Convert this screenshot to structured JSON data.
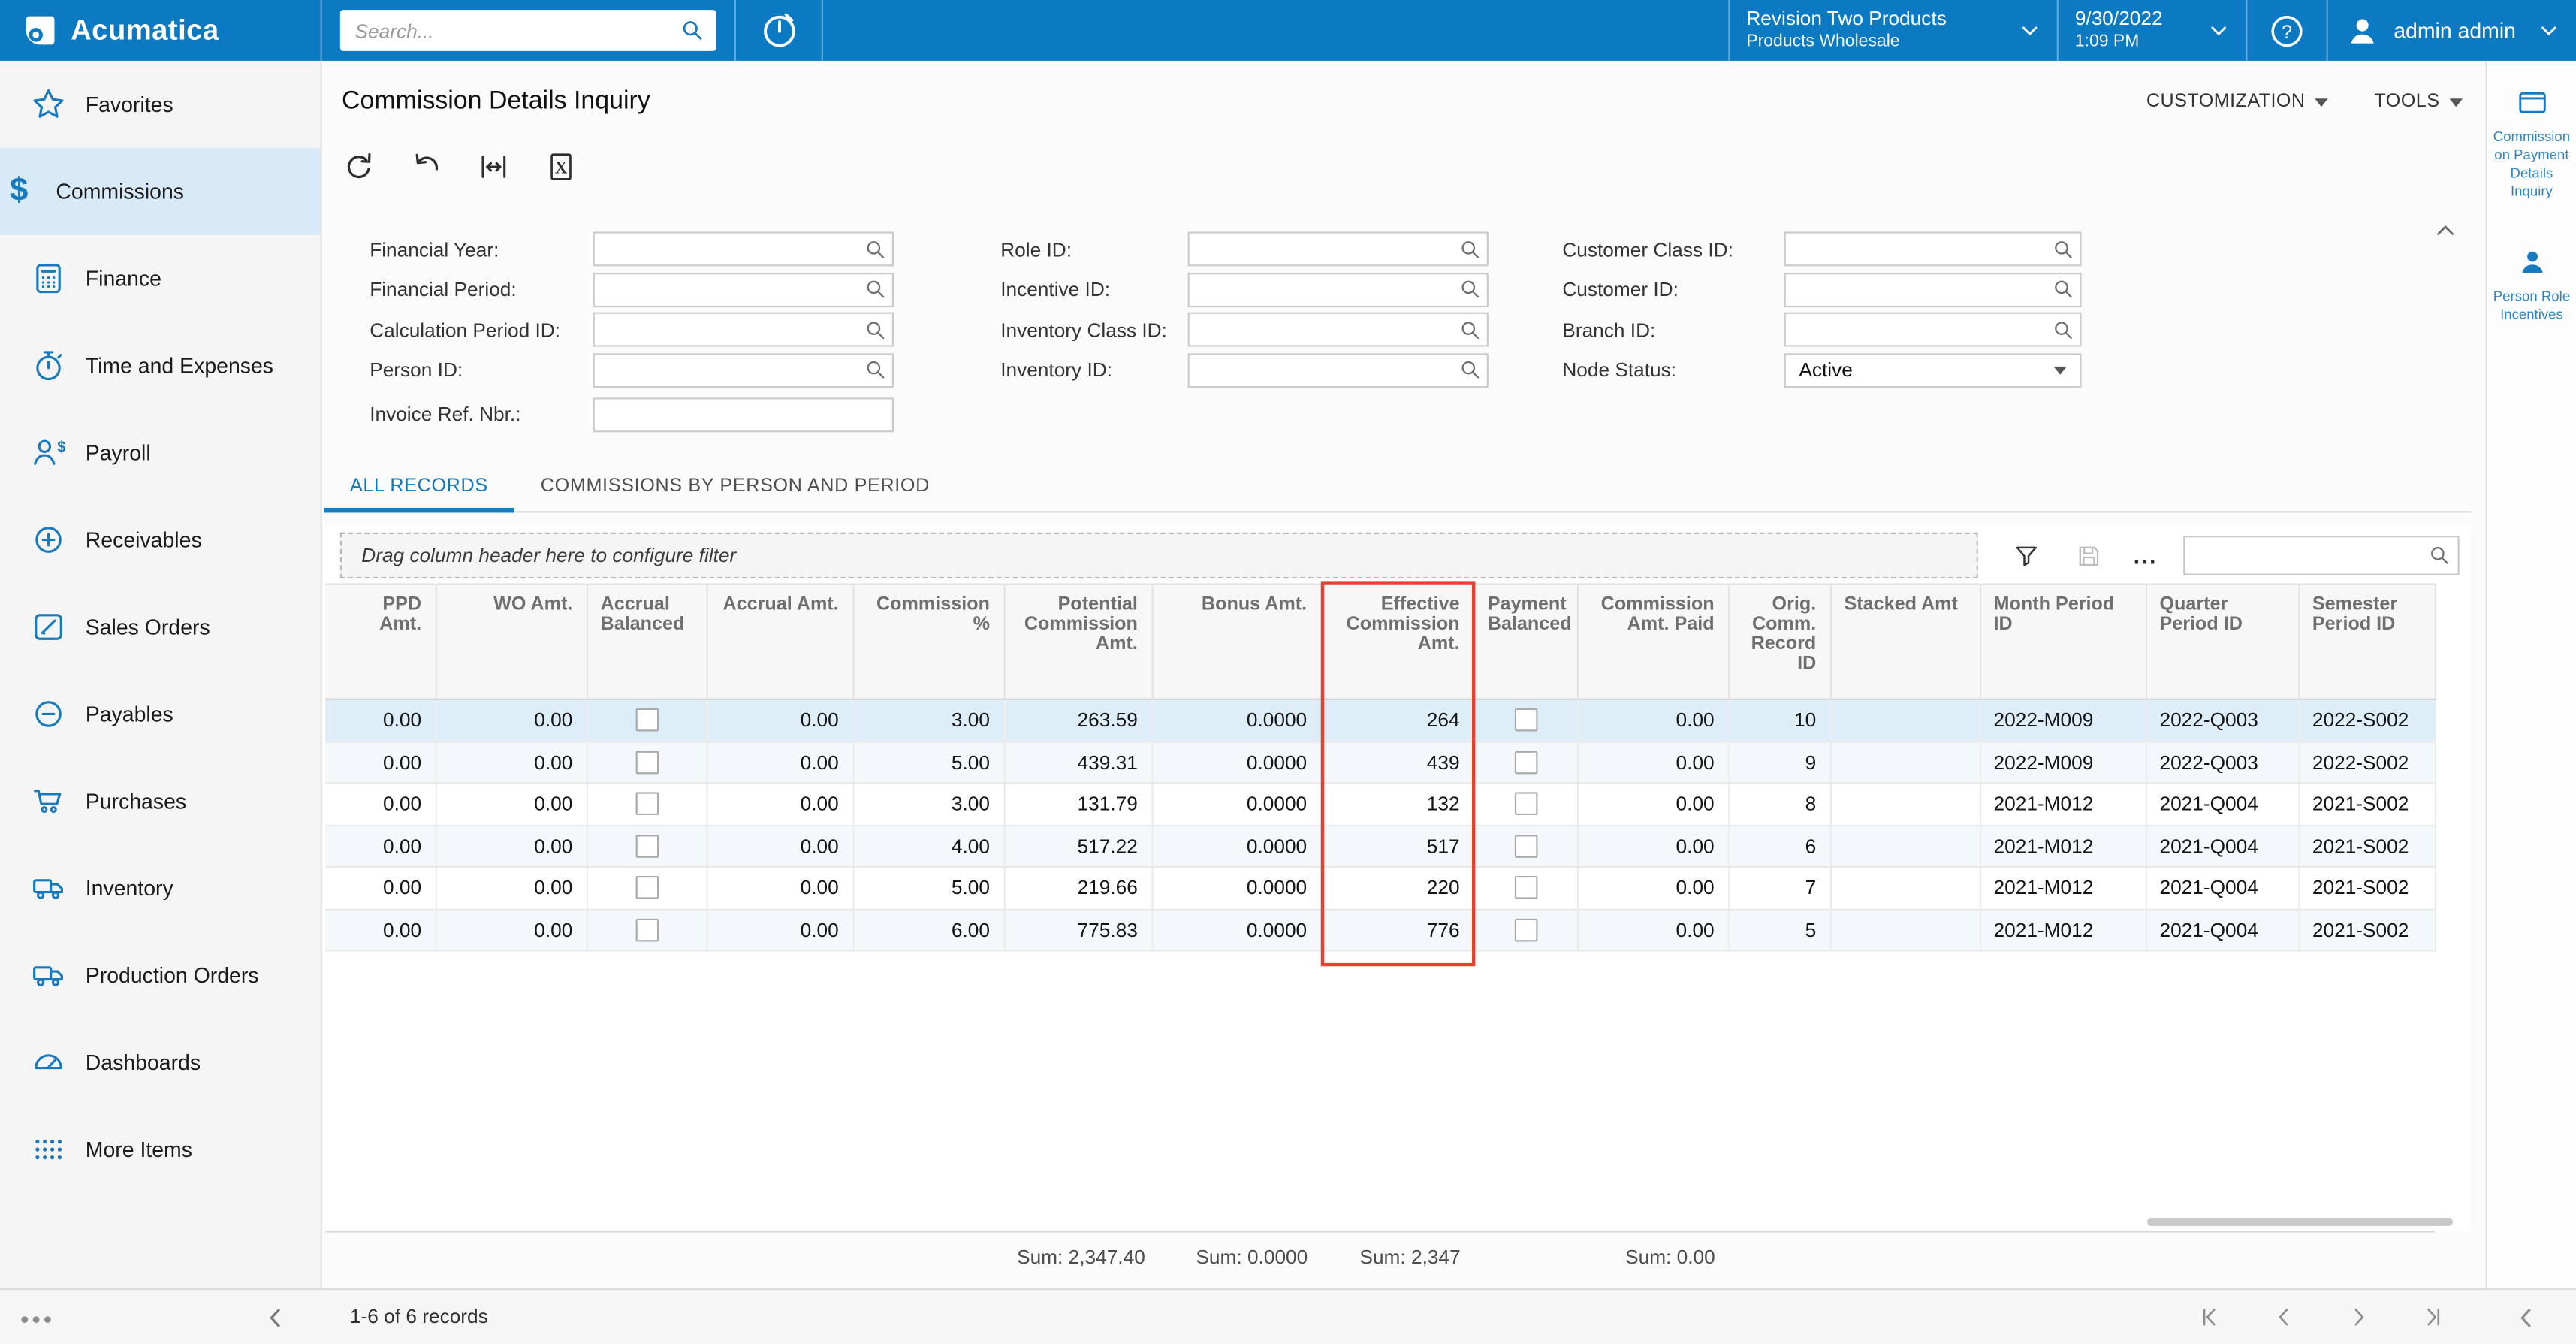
{
  "header": {
    "logo": "Acumatica",
    "search_placeholder": "Search...",
    "company": "Revision Two Products",
    "branch": "Products Wholesale",
    "date": "9/30/2022",
    "time": "1:09 PM",
    "user": "admin admin"
  },
  "sidebar": {
    "items": [
      {
        "label": "Favorites",
        "icon": "star",
        "active": false
      },
      {
        "label": "Commissions",
        "icon": "dollar",
        "active": true
      },
      {
        "label": "Finance",
        "icon": "calculator",
        "active": false
      },
      {
        "label": "Time and Expenses",
        "icon": "stopwatch",
        "active": false
      },
      {
        "label": "Payroll",
        "icon": "person-dollar",
        "active": false
      },
      {
        "label": "Receivables",
        "icon": "plus-circle",
        "active": false
      },
      {
        "label": "Sales Orders",
        "icon": "pencil-square",
        "active": false
      },
      {
        "label": "Payables",
        "icon": "minus-circle",
        "active": false
      },
      {
        "label": "Purchases",
        "icon": "cart",
        "active": false
      },
      {
        "label": "Inventory",
        "icon": "truck",
        "active": false
      },
      {
        "label": "Production Orders",
        "icon": "truck",
        "active": false
      },
      {
        "label": "Dashboards",
        "icon": "gauge",
        "active": false
      },
      {
        "label": "More Items",
        "icon": "grid-dots",
        "active": false
      }
    ]
  },
  "page": {
    "title": "Commission Details Inquiry",
    "customization_label": "CUSTOMIZATION",
    "tools_label": "TOOLS"
  },
  "filters": {
    "col1": [
      {
        "label": "Financial Year:",
        "type": "lookup",
        "value": ""
      },
      {
        "label": "Financial Period:",
        "type": "lookup",
        "value": ""
      },
      {
        "label": "Calculation Period ID:",
        "type": "lookup",
        "value": ""
      },
      {
        "label": "Person ID:",
        "type": "lookup",
        "value": ""
      },
      {
        "label": "Invoice Ref. Nbr.:",
        "type": "text",
        "value": "",
        "gap_before": true
      }
    ],
    "col2": [
      {
        "label": "Role ID:",
        "type": "lookup",
        "value": ""
      },
      {
        "label": "Incentive ID:",
        "type": "lookup",
        "value": ""
      },
      {
        "label": "Inventory Class ID:",
        "type": "lookup",
        "value": ""
      },
      {
        "label": "Inventory ID:",
        "type": "lookup",
        "value": ""
      }
    ],
    "col3": [
      {
        "label": "Customer Class ID:",
        "type": "lookup",
        "value": ""
      },
      {
        "label": "Customer ID:",
        "type": "lookup",
        "value": ""
      },
      {
        "label": "Branch ID:",
        "type": "lookup",
        "value": ""
      },
      {
        "label": "Node Status:",
        "type": "select",
        "value": "Active"
      }
    ]
  },
  "tabs": [
    {
      "label": "ALL RECORDS",
      "active": true
    },
    {
      "label": "COMMISSIONS BY PERSON AND PERIOD",
      "active": false
    }
  ],
  "grid": {
    "drag_hint": "Drag column header here to configure filter",
    "search_value": "",
    "highlight_color": "#e8402f",
    "columns": [
      {
        "label": "PPD Amt.",
        "width": 67,
        "align": "right",
        "type": "text"
      },
      {
        "label": "WO Amt.",
        "width": 92,
        "align": "right",
        "type": "text"
      },
      {
        "label": "Accrual Balanced",
        "width": 73,
        "align": "left",
        "type": "checkbox"
      },
      {
        "label": "Accrual Amt.",
        "width": 89,
        "align": "right",
        "type": "text"
      },
      {
        "label": "Commission %",
        "width": 92,
        "align": "right",
        "type": "text"
      },
      {
        "label": "Potential Commission Amt.",
        "width": 90,
        "align": "right",
        "type": "text"
      },
      {
        "label": "Bonus Amt.",
        "width": 103,
        "align": "right",
        "type": "text"
      },
      {
        "label": "Effective Commission Amt.",
        "width": 93,
        "align": "right",
        "type": "text",
        "highlighted": true
      },
      {
        "label": "Payment Balanced",
        "width": 63,
        "align": "left",
        "type": "checkbox"
      },
      {
        "label": "Commission Amt. Paid",
        "width": 92,
        "align": "right",
        "type": "text"
      },
      {
        "label": "Orig. Comm. Record ID",
        "width": 62,
        "align": "right",
        "type": "text"
      },
      {
        "label": "Stacked Amt",
        "width": 91,
        "align": "left",
        "type": "text"
      },
      {
        "label": "Month Period ID",
        "width": 101,
        "align": "left",
        "type": "text"
      },
      {
        "label": "Quarter Period ID",
        "width": 93,
        "align": "left",
        "type": "text"
      },
      {
        "label": "Semester Period ID",
        "width": 83,
        "align": "left",
        "type": "text"
      }
    ],
    "rows": [
      {
        "selected": true,
        "cells": [
          "0.00",
          "0.00",
          false,
          "0.00",
          "3.00",
          "263.59",
          "0.0000",
          "264",
          false,
          "0.00",
          "10",
          "",
          "2022-M009",
          "2022-Q003",
          "2022-S002"
        ]
      },
      {
        "selected": false,
        "cells": [
          "0.00",
          "0.00",
          false,
          "0.00",
          "5.00",
          "439.31",
          "0.0000",
          "439",
          false,
          "0.00",
          "9",
          "",
          "2022-M009",
          "2022-Q003",
          "2022-S002"
        ]
      },
      {
        "selected": false,
        "cells": [
          "0.00",
          "0.00",
          false,
          "0.00",
          "3.00",
          "131.79",
          "0.0000",
          "132",
          false,
          "0.00",
          "8",
          "",
          "2021-M012",
          "2021-Q004",
          "2021-S002"
        ]
      },
      {
        "selected": false,
        "cells": [
          "0.00",
          "0.00",
          false,
          "0.00",
          "4.00",
          "517.22",
          "0.0000",
          "517",
          false,
          "0.00",
          "6",
          "",
          "2021-M012",
          "2021-Q004",
          "2021-S002"
        ]
      },
      {
        "selected": false,
        "cells": [
          "0.00",
          "0.00",
          false,
          "0.00",
          "5.00",
          "219.66",
          "0.0000",
          "220",
          false,
          "0.00",
          "7",
          "",
          "2021-M012",
          "2021-Q004",
          "2021-S002"
        ]
      },
      {
        "selected": false,
        "cells": [
          "0.00",
          "0.00",
          false,
          "0.00",
          "6.00",
          "775.83",
          "0.0000",
          "776",
          false,
          "0.00",
          "5",
          "",
          "2021-M012",
          "2021-Q004",
          "2021-S002"
        ]
      }
    ],
    "sums": [
      "",
      "",
      "",
      "",
      "",
      "Sum: 2,347.40",
      "Sum: 0.0000",
      "Sum: 2,347",
      "",
      "Sum: 0.00",
      "",
      "",
      "",
      "",
      ""
    ]
  },
  "status_bar": {
    "records": "1-6 of 6 records"
  },
  "side_panel": {
    "items": [
      {
        "label": "Commission on Payment Details Inquiry",
        "icon": "card"
      },
      {
        "label": "Person Role Incentives",
        "icon": "person"
      }
    ]
  }
}
